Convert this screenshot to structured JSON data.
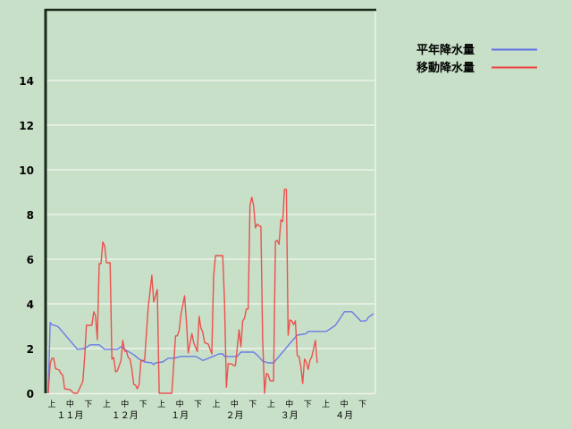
{
  "chart_data": {
    "type": "line",
    "title": "",
    "xlabel": "",
    "ylabel": "",
    "ylim": [
      0,
      17.2
    ],
    "yticks": [
      "0",
      "2",
      "4",
      "6",
      "8",
      "10",
      "12",
      "14"
    ],
    "ytick_values": [
      0,
      2,
      4,
      6,
      8,
      10,
      12,
      14
    ],
    "grid": true,
    "legend_position": "top-right",
    "x_period_labels": [
      "上",
      "中",
      "下",
      "上",
      "中",
      "下",
      "上",
      "中",
      "下",
      "上",
      "中",
      "下",
      "上",
      "中",
      "下",
      "上",
      "中",
      "下"
    ],
    "x_month_labels": [
      "１１月",
      "１２月",
      "１月",
      "２月",
      "３月",
      "４月"
    ],
    "series": [
      {
        "name": "平年降水量",
        "color": "#6070e8",
        "points": [
          [
            "11-02",
            0
          ],
          [
            "11-03",
            3.17
          ],
          [
            "11-04",
            3.07
          ],
          [
            "11-07",
            3.0
          ],
          [
            "11-08",
            2.93
          ],
          [
            "11-18",
            1.97
          ],
          [
            "11-22",
            2.0
          ],
          [
            "11-25",
            2.17
          ],
          [
            "11-30",
            2.17
          ],
          [
            "12-03",
            1.97
          ],
          [
            "12-10",
            1.97
          ],
          [
            "12-12",
            2.08
          ],
          [
            "12-16",
            1.87
          ],
          [
            "12-19",
            1.73
          ],
          [
            "12-22",
            1.53
          ],
          [
            "12-25",
            1.4
          ],
          [
            "12-29",
            1.36
          ],
          [
            "12-30",
            1.28
          ],
          [
            "12-31",
            1.36
          ],
          [
            "01-04",
            1.4
          ],
          [
            "01-07",
            1.57
          ],
          [
            "01-10",
            1.57
          ],
          [
            "01-14",
            1.65
          ],
          [
            "01-22",
            1.65
          ],
          [
            "01-24",
            1.57
          ],
          [
            "01-26",
            1.47
          ],
          [
            "01-28",
            1.53
          ],
          [
            "01-31",
            1.63
          ],
          [
            "02-04",
            1.76
          ],
          [
            "02-06",
            1.76
          ],
          [
            "02-07",
            1.65
          ],
          [
            "02-14",
            1.65
          ],
          [
            "02-16",
            1.84
          ],
          [
            "02-23",
            1.84
          ],
          [
            "02-25",
            1.71
          ],
          [
            "02-28",
            1.44
          ],
          [
            "03-03",
            1.36
          ],
          [
            "03-06",
            1.36
          ],
          [
            "03-16",
            2.33
          ],
          [
            "03-19",
            2.6
          ],
          [
            "03-24",
            2.67
          ],
          [
            "03-25",
            2.77
          ],
          [
            "04-04",
            2.77
          ],
          [
            "04-09",
            3.04
          ],
          [
            "04-14",
            3.65
          ],
          [
            "04-18",
            3.65
          ],
          [
            "04-21",
            3.4
          ],
          [
            "04-23",
            3.23
          ],
          [
            "04-26",
            3.25
          ],
          [
            "04-27",
            3.39
          ],
          [
            "04-30",
            3.57
          ]
        ]
      },
      {
        "name": "移動降水量",
        "color": "#f04040",
        "points": [
          [
            "11-02",
            0
          ],
          [
            "11-03",
            1.33
          ],
          [
            "11-04",
            1.57
          ],
          [
            "11-05",
            1.56
          ],
          [
            "11-06",
            1.1
          ],
          [
            "11-08",
            1.04
          ],
          [
            "11-09",
            0.88
          ],
          [
            "11-10",
            0.8
          ],
          [
            "11-11",
            0.2
          ],
          [
            "11-14",
            0.16
          ],
          [
            "11-16",
            0
          ],
          [
            "11-18",
            0
          ],
          [
            "11-21",
            0.53
          ],
          [
            "11-22",
            1.6
          ],
          [
            "11-23",
            3.04
          ],
          [
            "11-26",
            3.04
          ],
          [
            "11-27",
            3.65
          ],
          [
            "11-28",
            3.47
          ],
          [
            "11-29",
            2.4
          ],
          [
            "11-30",
            5.8
          ],
          [
            "12-01",
            5.8
          ],
          [
            "12-02",
            6.77
          ],
          [
            "12-03",
            6.6
          ],
          [
            "12-04",
            5.84
          ],
          [
            "12-06",
            5.84
          ],
          [
            "12-07",
            1.53
          ],
          [
            "12-08",
            1.6
          ],
          [
            "12-09",
            0.96
          ],
          [
            "12-10",
            1.0
          ],
          [
            "12-12",
            1.47
          ],
          [
            "12-13",
            2.37
          ],
          [
            "12-14",
            1.89
          ],
          [
            "12-15",
            1.87
          ],
          [
            "12-16",
            1.6
          ],
          [
            "12-17",
            1.53
          ],
          [
            "12-18",
            1.07
          ],
          [
            "12-19",
            0.4
          ],
          [
            "12-20",
            0.37
          ],
          [
            "12-21",
            0.2
          ],
          [
            "12-22",
            0.4
          ],
          [
            "12-23",
            1.47
          ],
          [
            "12-25",
            1.47
          ],
          [
            "12-27",
            3.87
          ],
          [
            "12-29",
            5.28
          ],
          [
            "12-30",
            4.08
          ],
          [
            "01-01",
            4.64
          ],
          [
            "01-02",
            0
          ],
          [
            "01-09",
            0
          ],
          [
            "01-11",
            2.57
          ],
          [
            "01-12",
            2.57
          ],
          [
            "01-13",
            2.8
          ],
          [
            "01-14",
            3.53
          ],
          [
            "01-16",
            4.36
          ],
          [
            "01-17",
            3.2
          ],
          [
            "01-18",
            1.8
          ],
          [
            "01-20",
            2.67
          ],
          [
            "01-21",
            2.27
          ],
          [
            "01-23",
            1.87
          ],
          [
            "01-24",
            3.44
          ],
          [
            "01-25",
            2.93
          ],
          [
            "01-26",
            2.73
          ],
          [
            "01-27",
            2.27
          ],
          [
            "01-29",
            2.2
          ],
          [
            "01-31",
            1.76
          ],
          [
            "02-01",
            5.2
          ],
          [
            "02-02",
            6.16
          ],
          [
            "02-06",
            6.16
          ],
          [
            "02-07",
            4.13
          ],
          [
            "02-08",
            0.27
          ],
          [
            "02-09",
            1.33
          ],
          [
            "02-11",
            1.31
          ],
          [
            "02-12",
            1.24
          ],
          [
            "02-13",
            1.24
          ],
          [
            "02-15",
            2.84
          ],
          [
            "02-16",
            2.08
          ],
          [
            "02-17",
            3.24
          ],
          [
            "02-18",
            3.36
          ],
          [
            "02-19",
            3.77
          ],
          [
            "02-20",
            3.77
          ],
          [
            "02-21",
            8.4
          ],
          [
            "02-22",
            8.77
          ],
          [
            "02-23",
            8.4
          ],
          [
            "02-24",
            7.4
          ],
          [
            "02-25",
            7.57
          ],
          [
            "02-26",
            7.49
          ],
          [
            "02-27",
            7.47
          ],
          [
            "02-28",
            2.4
          ],
          [
            "03-01",
            0
          ],
          [
            "03-02",
            0.88
          ],
          [
            "03-03",
            0.84
          ],
          [
            "03-04",
            0.56
          ],
          [
            "03-06",
            0.56
          ],
          [
            "03-07",
            6.8
          ],
          [
            "03-08",
            6.84
          ],
          [
            "03-09",
            6.67
          ],
          [
            "03-10",
            7.76
          ],
          [
            "03-11",
            7.68
          ],
          [
            "03-12",
            9.13
          ],
          [
            "03-13",
            9.13
          ],
          [
            "03-14",
            2.6
          ],
          [
            "03-15",
            3.28
          ],
          [
            "03-16",
            3.24
          ],
          [
            "03-17",
            3.07
          ],
          [
            "03-18",
            3.24
          ],
          [
            "03-19",
            1.68
          ],
          [
            "03-20",
            1.64
          ],
          [
            "03-21",
            1.2
          ],
          [
            "03-22",
            0.44
          ],
          [
            "03-23",
            1.53
          ],
          [
            "03-24",
            1.4
          ],
          [
            "03-25",
            1.07
          ],
          [
            "03-26",
            1.47
          ],
          [
            "03-27",
            1.63
          ],
          [
            "03-28",
            2.0
          ],
          [
            "03-29",
            2.37
          ],
          [
            "03-30",
            1.36
          ]
        ]
      }
    ]
  }
}
